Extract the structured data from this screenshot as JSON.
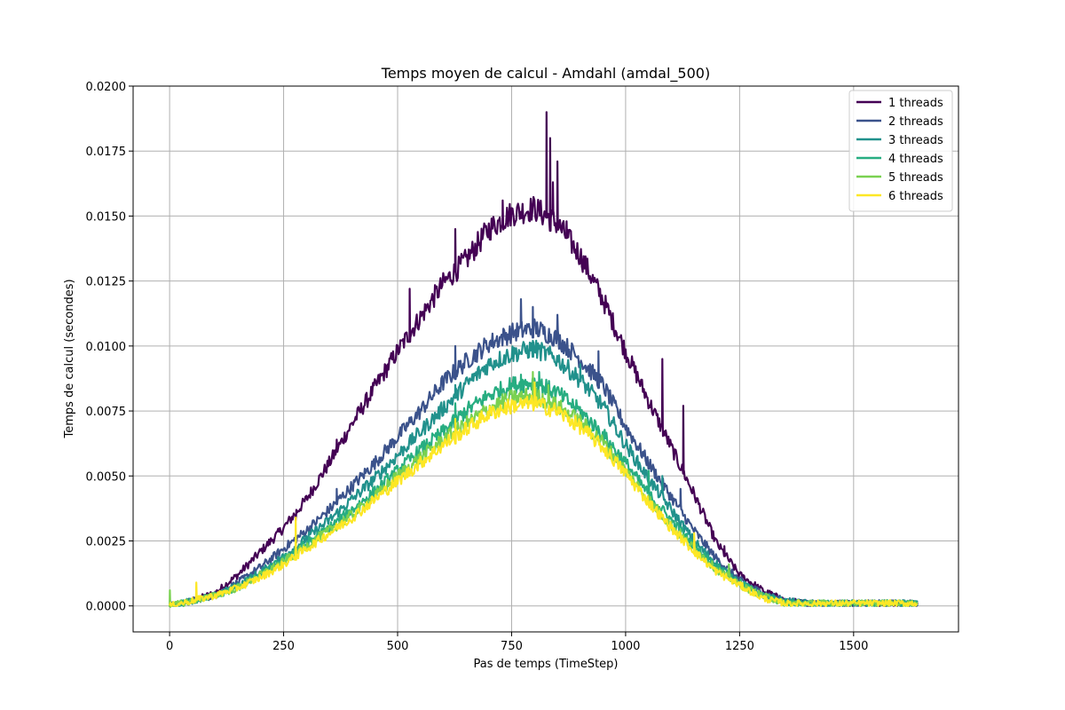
{
  "chart_data": {
    "type": "line",
    "title": "Temps moyen de calcul - Amdahl (amdal_500)",
    "xlabel": "Pas de temps (TimeStep)",
    "ylabel": "Temps de calcul (secondes)",
    "xlim": [
      -80,
      1730
    ],
    "ylim": [
      -0.001,
      0.02
    ],
    "x_ticks": [
      0,
      250,
      500,
      750,
      1000,
      1250,
      1500
    ],
    "x_tick_labels": [
      "0",
      "250",
      "500",
      "750",
      "1000",
      "1250",
      "1500"
    ],
    "y_ticks": [
      0,
      0.0025,
      0.005,
      0.0075,
      0.01,
      0.0125,
      0.015,
      0.0175,
      0.02
    ],
    "y_tick_labels": [
      "0.0000",
      "0.0025",
      "0.0050",
      "0.0075",
      "0.0100",
      "0.0125",
      "0.0150",
      "0.0175",
      "0.0200"
    ],
    "grid": true,
    "legend_position": "top-right",
    "series": [
      {
        "name": "1 threads",
        "color": "#440154",
        "x": [
          0,
          50,
          100,
          150,
          200,
          250,
          300,
          350,
          400,
          450,
          500,
          550,
          600,
          650,
          700,
          750,
          800,
          850,
          900,
          950,
          1000,
          1050,
          1100,
          1150,
          1200,
          1250,
          1300,
          1350,
          1400,
          1450,
          1500,
          1550,
          1600,
          1640
        ],
        "y": [
          0.0,
          0.0002,
          0.0005,
          0.0012,
          0.0021,
          0.003,
          0.0041,
          0.0055,
          0.007,
          0.0084,
          0.0098,
          0.0111,
          0.0124,
          0.0133,
          0.0145,
          0.0151,
          0.0153,
          0.0147,
          0.0135,
          0.0118,
          0.0098,
          0.0079,
          0.0061,
          0.0043,
          0.0024,
          0.0012,
          0.0006,
          0.0002,
          0.0001,
          0.0001,
          0.0001,
          0.0001,
          0.0001,
          0.0001
        ],
        "spikes": [
          [
            275,
            0.0033
          ],
          [
            365,
            0.0064
          ],
          [
            525,
            0.0122
          ],
          [
            625,
            0.0145
          ],
          [
            730,
            0.0156
          ],
          [
            825,
            0.019
          ],
          [
            833,
            0.018
          ],
          [
            840,
            0.0163
          ],
          [
            850,
            0.0171
          ],
          [
            870,
            0.0148
          ],
          [
            1080,
            0.0095
          ],
          [
            1125,
            0.0077
          ],
          [
            1215,
            0.0023
          ]
        ]
      },
      {
        "name": "2 threads",
        "color": "#3b528b",
        "x": [
          0,
          50,
          100,
          150,
          200,
          250,
          300,
          350,
          400,
          450,
          500,
          550,
          600,
          650,
          700,
          750,
          800,
          850,
          900,
          950,
          1000,
          1050,
          1100,
          1150,
          1200,
          1250,
          1300,
          1350,
          1400,
          1450,
          1500,
          1550,
          1600,
          1640
        ],
        "y": [
          0.0,
          0.0002,
          0.0004,
          0.0009,
          0.0015,
          0.0022,
          0.0029,
          0.0037,
          0.0046,
          0.0055,
          0.0065,
          0.0075,
          0.0086,
          0.0094,
          0.0101,
          0.0105,
          0.0107,
          0.0103,
          0.0095,
          0.0085,
          0.0069,
          0.0055,
          0.0042,
          0.0029,
          0.0018,
          0.001,
          0.0005,
          0.0002,
          0.0001,
          0.0001,
          0.0001,
          0.0001,
          0.0001,
          0.0001
        ],
        "spikes": [
          [
            365,
            0.0045
          ],
          [
            625,
            0.01
          ],
          [
            770,
            0.0118
          ],
          [
            795,
            0.0115
          ],
          [
            850,
            0.0112
          ],
          [
            940,
            0.0098
          ],
          [
            1120,
            0.0045
          ]
        ]
      },
      {
        "name": "3 threads",
        "color": "#21918c",
        "x": [
          0,
          50,
          100,
          150,
          200,
          250,
          300,
          350,
          400,
          450,
          500,
          550,
          600,
          650,
          700,
          750,
          800,
          850,
          900,
          950,
          1000,
          1050,
          1100,
          1150,
          1200,
          1250,
          1300,
          1350,
          1400,
          1450,
          1500,
          1550,
          1600,
          1640
        ],
        "y": [
          0.0,
          0.0002,
          0.0004,
          0.0008,
          0.0013,
          0.0019,
          0.0026,
          0.0033,
          0.0041,
          0.0049,
          0.0058,
          0.0067,
          0.0076,
          0.0085,
          0.0093,
          0.0097,
          0.0099,
          0.0095,
          0.0087,
          0.0077,
          0.0062,
          0.0049,
          0.0037,
          0.0025,
          0.0016,
          0.0009,
          0.0004,
          0.0002,
          0.0001,
          0.0001,
          0.0001,
          0.0001,
          0.0001,
          0.0001
        ],
        "spikes": [
          [
            625,
            0.0085
          ],
          [
            795,
            0.0102
          ],
          [
            900,
            0.0093
          ],
          [
            1080,
            0.005
          ]
        ]
      },
      {
        "name": "4 threads",
        "color": "#27ad81",
        "x": [
          0,
          50,
          100,
          150,
          200,
          250,
          300,
          350,
          400,
          450,
          500,
          550,
          600,
          650,
          700,
          750,
          800,
          850,
          900,
          950,
          1000,
          1050,
          1100,
          1150,
          1200,
          1250,
          1300,
          1350,
          1400,
          1450,
          1500,
          1550,
          1600,
          1640
        ],
        "y": [
          0.0,
          0.0002,
          0.0004,
          0.0007,
          0.0012,
          0.0018,
          0.0024,
          0.003,
          0.0037,
          0.0044,
          0.0052,
          0.006,
          0.0067,
          0.0075,
          0.0081,
          0.0085,
          0.0086,
          0.0082,
          0.0075,
          0.0066,
          0.0055,
          0.0043,
          0.0033,
          0.0023,
          0.0015,
          0.0009,
          0.0004,
          0.0001,
          0.0001,
          0.0001,
          0.0001,
          0.0001,
          0.0001,
          0.0001
        ],
        "spikes": [
          [
            625,
            0.0078
          ],
          [
            770,
            0.0089
          ],
          [
            810,
            0.009
          ],
          [
            1050,
            0.0052
          ]
        ]
      },
      {
        "name": "5 threads",
        "color": "#7ad151",
        "x": [
          0,
          50,
          100,
          150,
          200,
          250,
          300,
          350,
          400,
          450,
          500,
          550,
          600,
          650,
          700,
          750,
          800,
          850,
          900,
          950,
          1000,
          1050,
          1100,
          1150,
          1200,
          1250,
          1300,
          1350,
          1400,
          1450,
          1500,
          1550,
          1600,
          1640
        ],
        "y": [
          0.0,
          0.0002,
          0.0004,
          0.0007,
          0.0012,
          0.0017,
          0.0023,
          0.0029,
          0.0035,
          0.0042,
          0.005,
          0.0057,
          0.0064,
          0.007,
          0.0076,
          0.008,
          0.0081,
          0.0077,
          0.0071,
          0.0063,
          0.0052,
          0.0041,
          0.0031,
          0.0022,
          0.0014,
          0.0008,
          0.0004,
          0.0001,
          0.0001,
          0.0001,
          0.0001,
          0.0001,
          0.0001,
          0.0001
        ],
        "spikes": [
          [
            0,
            0.0006
          ],
          [
            795,
            0.009
          ],
          [
            830,
            0.0085
          ],
          [
            1225,
            0.0016
          ]
        ]
      },
      {
        "name": "6 threads",
        "color": "#fde725",
        "x": [
          0,
          50,
          100,
          150,
          200,
          250,
          300,
          350,
          400,
          450,
          500,
          550,
          600,
          650,
          700,
          750,
          800,
          850,
          900,
          950,
          1000,
          1050,
          1100,
          1150,
          1200,
          1250,
          1300,
          1350,
          1400,
          1450,
          1500,
          1550,
          1600,
          1640
        ],
        "y": [
          0.0,
          0.0002,
          0.0004,
          0.0007,
          0.0011,
          0.0016,
          0.0022,
          0.0028,
          0.0034,
          0.0041,
          0.0048,
          0.0055,
          0.0062,
          0.0068,
          0.0074,
          0.0077,
          0.0078,
          0.0075,
          0.0069,
          0.0061,
          0.0051,
          0.004,
          0.003,
          0.0021,
          0.0013,
          0.0008,
          0.0003,
          0.0001,
          0.0001,
          0.0001,
          0.0001,
          0.0001,
          0.0001,
          0.0001
        ],
        "spikes": [
          [
            57,
            0.0009
          ],
          [
            275,
            0.0034
          ],
          [
            625,
            0.0072
          ],
          [
            800,
            0.0086
          ],
          [
            1150,
            0.0028
          ]
        ]
      }
    ]
  }
}
